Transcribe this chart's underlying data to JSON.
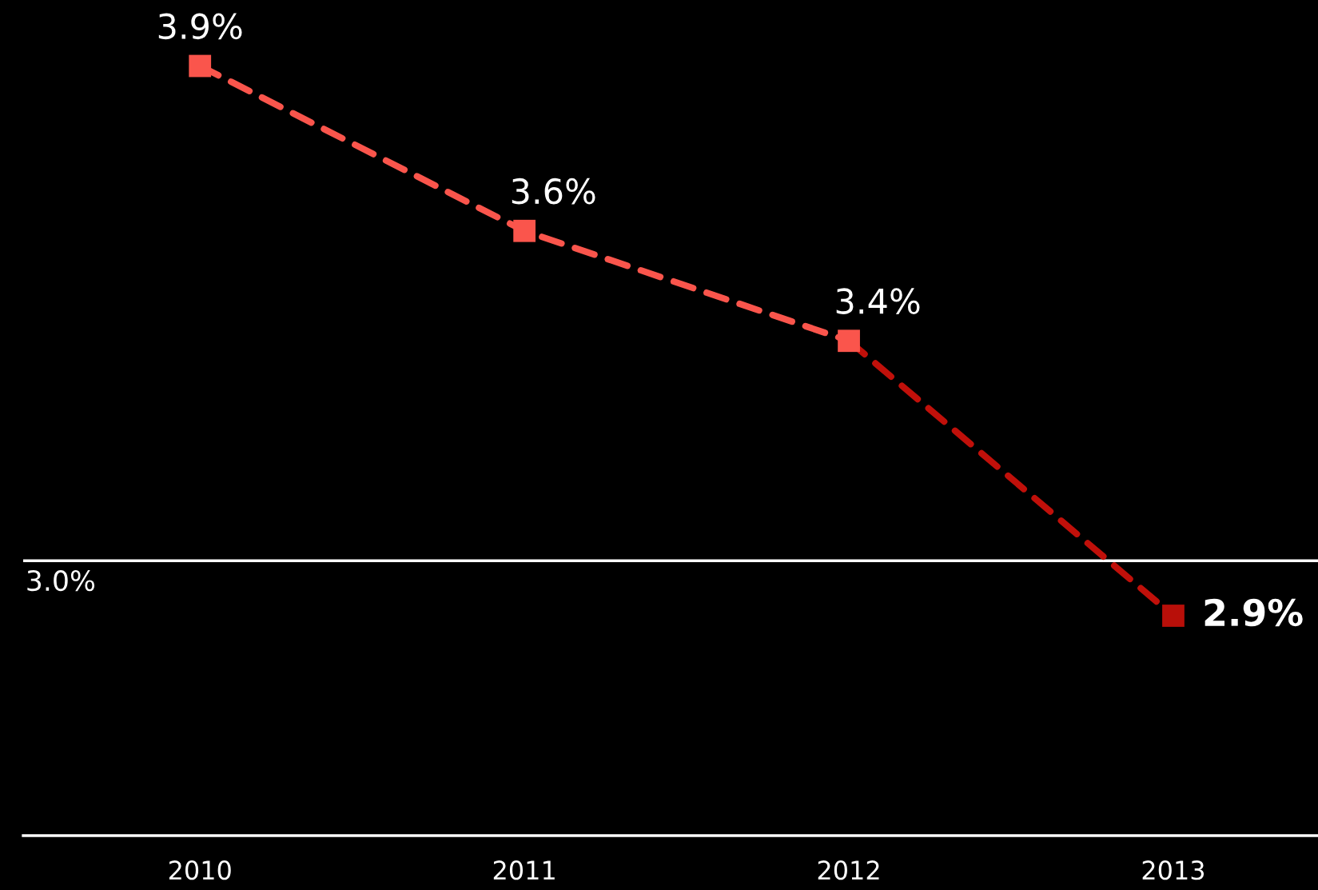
{
  "chart_data": {
    "type": "line",
    "categories": [
      "2010",
      "2011",
      "2012",
      "2013"
    ],
    "series": [
      {
        "color": "#fa554c",
        "colors": [
          "#fa554c",
          "#fa554c",
          "#fa554c",
          null
        ],
        "values": [
          3.9,
          3.6,
          3.4,
          null
        ],
        "value_labels": [
          "3.9%",
          "3.6%",
          "3.4%",
          null
        ]
      },
      {
        "color": "#c0100a",
        "colors": [
          null,
          null,
          null,
          "#b80f09"
        ],
        "values": [
          null,
          null,
          3.4,
          2.9
        ],
        "value_labels": [
          null,
          null,
          null,
          "2.9%"
        ]
      }
    ],
    "ylim": [
      2.5,
      4.02
    ],
    "tick_labels": "x",
    "marker": "square",
    "line_style": "dashed",
    "grid": false,
    "ref_lines": [
      {
        "axis": "y",
        "value": 3.0,
        "label": "3.0%",
        "color": "#ffffff",
        "line_style": "solid"
      }
    ]
  }
}
